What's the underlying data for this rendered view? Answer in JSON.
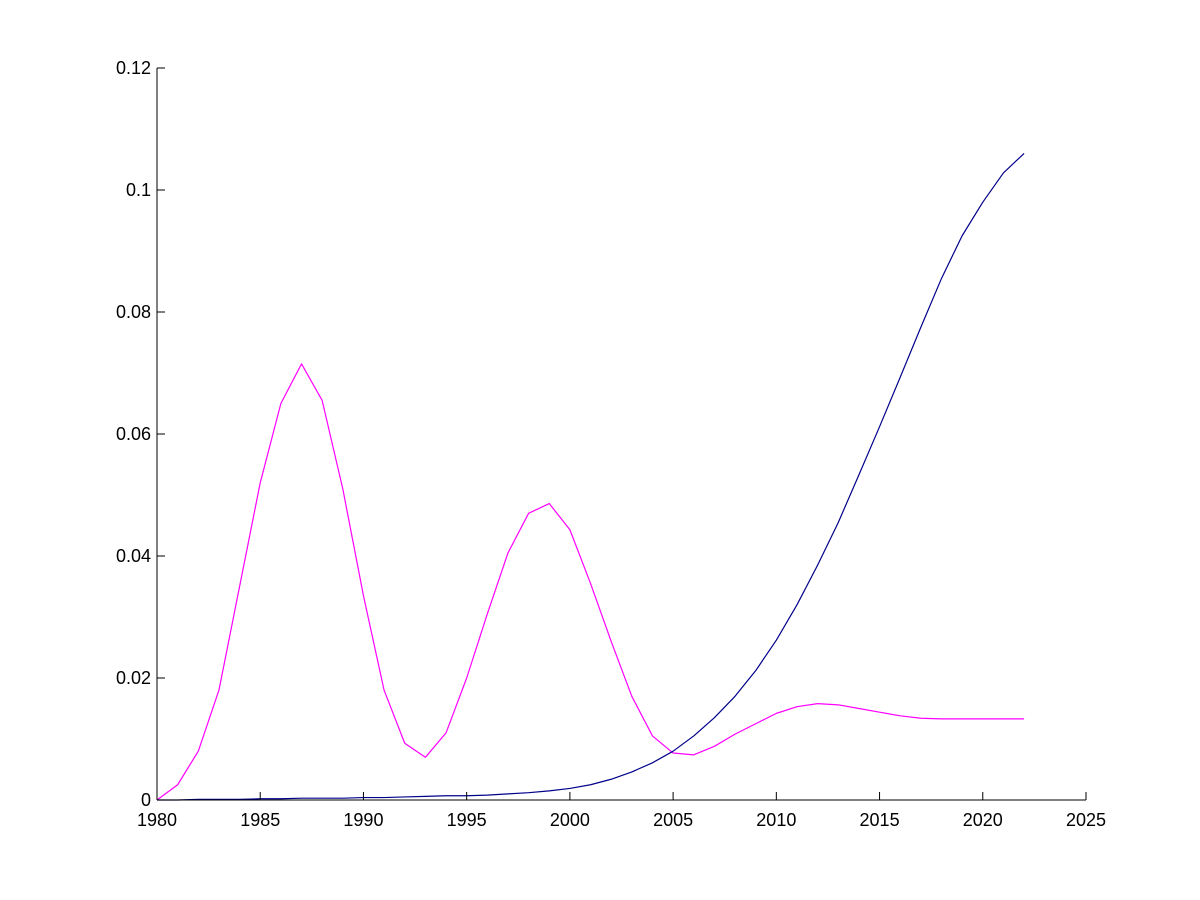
{
  "chart_data": {
    "type": "line",
    "title": "",
    "xlabel": "",
    "ylabel": "",
    "xlim": [
      1980,
      2025
    ],
    "ylim": [
      0,
      0.12
    ],
    "grid": false,
    "x_ticks": [
      1980,
      1985,
      1990,
      1995,
      2000,
      2005,
      2010,
      2015,
      2020,
      2025
    ],
    "x_tick_labels": [
      "1980",
      "1985",
      "1990",
      "1995",
      "2000",
      "2005",
      "2010",
      "2015",
      "2020",
      "2025"
    ],
    "y_ticks": [
      0,
      0.02,
      0.04,
      0.06,
      0.08,
      0.1,
      0.12
    ],
    "y_tick_labels": [
      "0",
      "0.02",
      "0.04",
      "0.06",
      "0.08",
      "0.1",
      "0.12"
    ],
    "x": [
      1980,
      1981,
      1982,
      1983,
      1984,
      1985,
      1986,
      1987,
      1988,
      1989,
      1990,
      1991,
      1992,
      1993,
      1994,
      1995,
      1996,
      1997,
      1998,
      1999,
      2000,
      2001,
      2002,
      2003,
      2004,
      2005,
      2006,
      2007,
      2008,
      2009,
      2010,
      2011,
      2012,
      2013,
      2014,
      2015,
      2016,
      2017,
      2018,
      2019,
      2020,
      2021,
      2022
    ],
    "series": [
      {
        "color": "#ff00ff",
        "values": [
          0.0,
          0.0025,
          0.008,
          0.018,
          0.035,
          0.052,
          0.065,
          0.0715,
          0.0655,
          0.051,
          0.0335,
          0.018,
          0.0093,
          0.007,
          0.011,
          0.02,
          0.0305,
          0.0405,
          0.047,
          0.0486,
          0.0443,
          0.0355,
          0.026,
          0.017,
          0.0105,
          0.0077,
          0.0074,
          0.0088,
          0.0108,
          0.0125,
          0.0142,
          0.0153,
          0.0158,
          0.0156,
          0.015,
          0.0144,
          0.0138,
          0.0134,
          0.0133,
          0.0133,
          0.0133,
          0.0133,
          0.0133
        ]
      },
      {
        "color": "#00008b",
        "values": [
          0.0,
          0.0,
          0.0001,
          0.0001,
          0.0001,
          0.0002,
          0.0002,
          0.0003,
          0.0003,
          0.0003,
          0.0004,
          0.0004,
          0.0005,
          0.0006,
          0.0007,
          0.0007,
          0.0008,
          0.001,
          0.0012,
          0.0015,
          0.0019,
          0.0025,
          0.0034,
          0.0046,
          0.0061,
          0.008,
          0.0105,
          0.0135,
          0.017,
          0.0212,
          0.0262,
          0.032,
          0.0385,
          0.0455,
          0.0533,
          0.0612,
          0.0693,
          0.0775,
          0.0855,
          0.0925,
          0.098,
          0.1028,
          0.106
        ]
      }
    ]
  }
}
